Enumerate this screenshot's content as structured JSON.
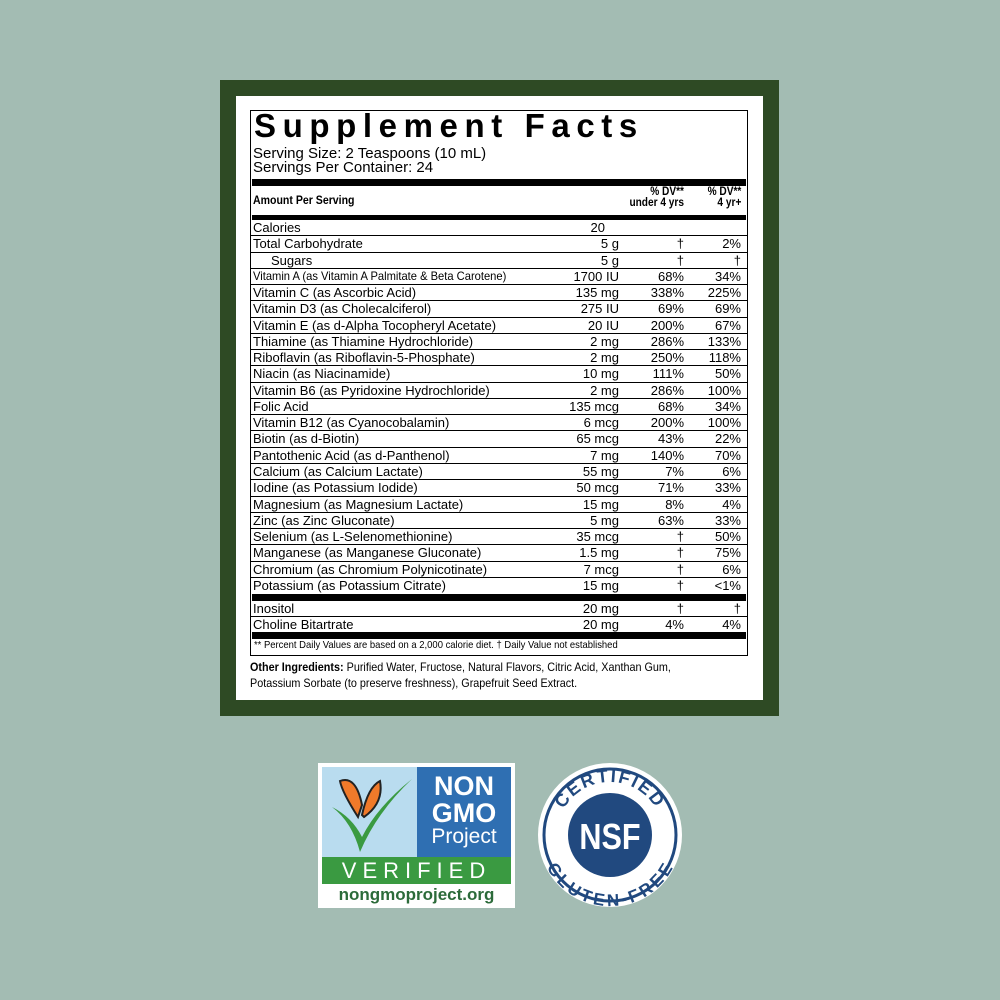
{
  "label": {
    "title": "Supplement Facts",
    "serving_size": "Serving Size: 2 Teaspoons (10 mL)",
    "servings_per_container": "Servings Per Container: 24",
    "header": {
      "amount": "Amount Per Serving",
      "dv_under4_line1": "% DV**",
      "dv_under4_line2": "under 4 yrs",
      "dv_4plus_line1": "% DV**",
      "dv_4plus_line2": "4 yr+"
    },
    "rows": [
      {
        "name": "Calories",
        "amount": "20",
        "dv1": "",
        "dv2": ""
      },
      {
        "name": "Total Carbohydrate",
        "amount": "5 g",
        "dv1": "†",
        "dv2": "2%"
      },
      {
        "name": "Sugars",
        "amount": "5 g",
        "dv1": "†",
        "dv2": "†"
      },
      {
        "name": "Vitamin A (as Vitamin A Palmitate & Beta Carotene)",
        "amount": "1700 IU",
        "dv1": "68%",
        "dv2": "34%"
      },
      {
        "name": "Vitamin C (as Ascorbic Acid)",
        "amount": "135 mg",
        "dv1": "338%",
        "dv2": "225%"
      },
      {
        "name": "Vitamin D3 (as Cholecalciferol)",
        "amount": "275 IU",
        "dv1": "69%",
        "dv2": "69%"
      },
      {
        "name": "Vitamin E (as d-Alpha Tocopheryl Acetate)",
        "amount": "20 IU",
        "dv1": "200%",
        "dv2": "67%"
      },
      {
        "name": "Thiamine (as Thiamine Hydrochloride)",
        "amount": "2 mg",
        "dv1": "286%",
        "dv2": "133%"
      },
      {
        "name": "Riboflavin (as Riboflavin-5-Phosphate)",
        "amount": "2 mg",
        "dv1": "250%",
        "dv2": "118%"
      },
      {
        "name": "Niacin (as Niacinamide)",
        "amount": "10 mg",
        "dv1": "111%",
        "dv2": "50%"
      },
      {
        "name": "Vitamin B6 (as Pyridoxine Hydrochloride)",
        "amount": "2 mg",
        "dv1": "286%",
        "dv2": "100%"
      },
      {
        "name": "Folic Acid",
        "amount": "135 mcg",
        "dv1": "68%",
        "dv2": "34%"
      },
      {
        "name": "Vitamin B12 (as Cyanocobalamin)",
        "amount": "6 mcg",
        "dv1": "200%",
        "dv2": "100%"
      },
      {
        "name": "Biotin (as d-Biotin)",
        "amount": "65 mcg",
        "dv1": "43%",
        "dv2": "22%"
      },
      {
        "name": "Pantothenic Acid (as d-Panthenol)",
        "amount": "7 mg",
        "dv1": "140%",
        "dv2": "70%"
      },
      {
        "name": "Calcium (as Calcium Lactate)",
        "amount": "55 mg",
        "dv1": "7%",
        "dv2": "6%"
      },
      {
        "name": "Iodine (as Potassium Iodide)",
        "amount": "50 mcg",
        "dv1": "71%",
        "dv2": "33%"
      },
      {
        "name": "Magnesium (as Magnesium Lactate)",
        "amount": "15 mg",
        "dv1": "8%",
        "dv2": "4%"
      },
      {
        "name": "Zinc (as Zinc Gluconate)",
        "amount": "5 mg",
        "dv1": "63%",
        "dv2": "33%"
      },
      {
        "name": "Selenium (as L-Selenomethionine)",
        "amount": "35 mcg",
        "dv1": "†",
        "dv2": "50%"
      },
      {
        "name": "Manganese (as Manganese Gluconate)",
        "amount": "1.5 mg",
        "dv1": "†",
        "dv2": "75%"
      },
      {
        "name": "Chromium (as Chromium Polynicotinate)",
        "amount": "7 mcg",
        "dv1": "†",
        "dv2": "6%"
      },
      {
        "name": "Potassium (as Potassium Citrate)",
        "amount": "15 mg",
        "dv1": "†",
        "dv2": "<1%"
      }
    ],
    "rows2": [
      {
        "name": "Inositol",
        "amount": "20 mg",
        "dv1": "†",
        "dv2": "†"
      },
      {
        "name": "Choline Bitartrate",
        "amount": "20 mg",
        "dv1": "4%",
        "dv2": "4%"
      }
    ],
    "footnote": "** Percent Daily Values are based on a 2,000 calorie diet.    † Daily Value not established",
    "other_ingredients_label": "Other Ingredients:",
    "other_ingredients": " Purified Water, Fructose, Natural Flavors, Citric Acid, Xanthan Gum, Potassium Sorbate (to preserve freshness), Grapefruit Seed Extract."
  },
  "badges": {
    "nongmo": {
      "line1": "NON",
      "line2": "GMO",
      "line3": "Project",
      "verified": "VERIFIED",
      "url": "nongmoproject.org"
    },
    "nsf": {
      "top": "CERTIFIED",
      "center": "NSF",
      "bottom": "GLUTEN-FREE"
    }
  },
  "colors": {
    "background": "#a3bcb3",
    "frame": "#2e4a24",
    "nongmo_blue": "#2f6fb2",
    "nongmo_green": "#3a9a41",
    "nsf_blue": "#21497f"
  }
}
